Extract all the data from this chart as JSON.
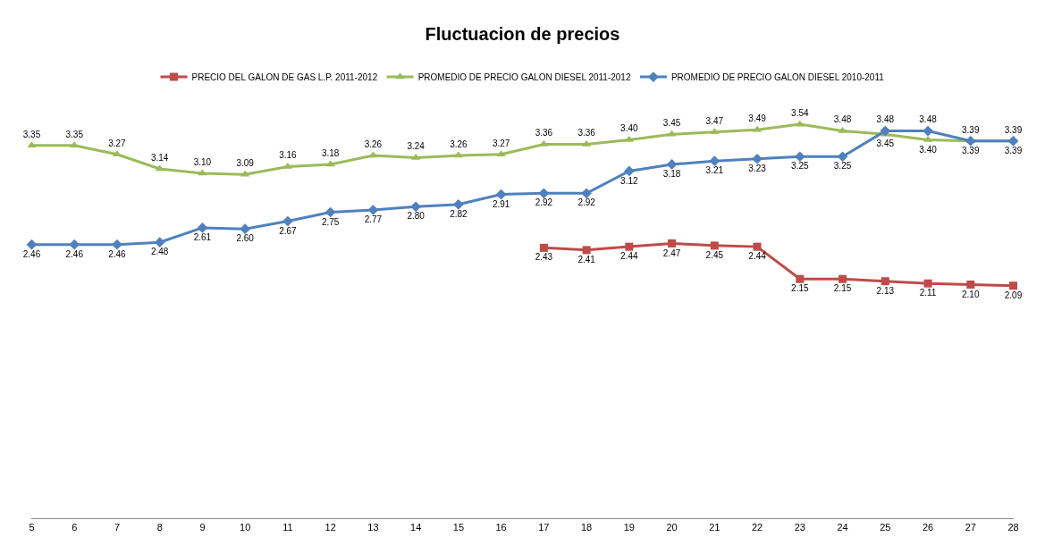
{
  "chart_data": {
    "type": "line",
    "title": "Fluctuacion de precios",
    "categories": [
      "5",
      "6",
      "7",
      "8",
      "9",
      "10",
      "11",
      "12",
      "13",
      "14",
      "15",
      "16",
      "17",
      "18",
      "19",
      "20",
      "21",
      "22",
      "23",
      "24",
      "25",
      "26",
      "27",
      "28"
    ],
    "series": [
      {
        "name": "PRECIO DEL GALON DE GAS L.P. 2011-2012",
        "color": "#be4b48",
        "marker": "square",
        "values": [
          null,
          null,
          null,
          null,
          null,
          null,
          null,
          null,
          null,
          null,
          null,
          null,
          2.43,
          2.41,
          2.44,
          2.47,
          2.45,
          2.44,
          2.15,
          2.15,
          2.13,
          2.11,
          2.1,
          2.09
        ],
        "value_labels": [
          null,
          null,
          null,
          null,
          null,
          null,
          null,
          null,
          null,
          null,
          null,
          null,
          "2.43",
          "2.41",
          "2.44",
          "2.47",
          "2.45",
          "2.44",
          "2.15",
          "2.15",
          "2.13",
          "2.11",
          "2.10",
          "2.09"
        ]
      },
      {
        "name": "PROMEDIO DE PRECIO GALON DIESEL 2011-2012",
        "color": "#9bbb59",
        "marker": "triangle",
        "values": [
          3.35,
          3.35,
          3.27,
          3.14,
          3.1,
          3.09,
          3.16,
          3.18,
          3.26,
          3.24,
          3.26,
          3.27,
          3.36,
          3.36,
          3.4,
          3.45,
          3.47,
          3.49,
          3.54,
          3.48,
          3.45,
          3.4,
          3.39,
          3.39
        ],
        "value_labels": [
          "3.35",
          "3.35",
          "3.27",
          "3.14",
          "3.10",
          "3.09",
          "3.16",
          "3.18",
          "3.26",
          "3.24",
          "3.26",
          "3.27",
          "3.36",
          "3.36",
          "3.40",
          "3.45",
          "3.47",
          "3.49",
          "3.54",
          "3.48",
          "3.45",
          "3.40",
          "3.39",
          "3.39"
        ]
      },
      {
        "name": "PROMEDIO DE PRECIO GALON DIESEL 2010-2011",
        "color": "#4f81bd",
        "marker": "diamond",
        "values": [
          2.46,
          2.46,
          2.46,
          2.48,
          2.61,
          2.6,
          2.67,
          2.75,
          2.77,
          2.8,
          2.82,
          2.91,
          2.92,
          2.92,
          3.12,
          3.18,
          3.21,
          3.23,
          3.25,
          3.25,
          3.48,
          3.48,
          3.39,
          3.39
        ],
        "value_labels": [
          "2.46",
          "2.46",
          "2.46",
          "2.48",
          "2.61",
          "2.60",
          "2.67",
          "2.75",
          "2.77",
          "2.80",
          "2.82",
          "2.91",
          "2.92",
          "2.92",
          "3.12",
          "3.18",
          "3.21",
          "3.23",
          "3.25",
          "3.25",
          "3.48",
          "3.48",
          "3.39",
          "3.39"
        ]
      }
    ],
    "tick_labels": "x",
    "legend": "top",
    "line_style": "solid"
  }
}
